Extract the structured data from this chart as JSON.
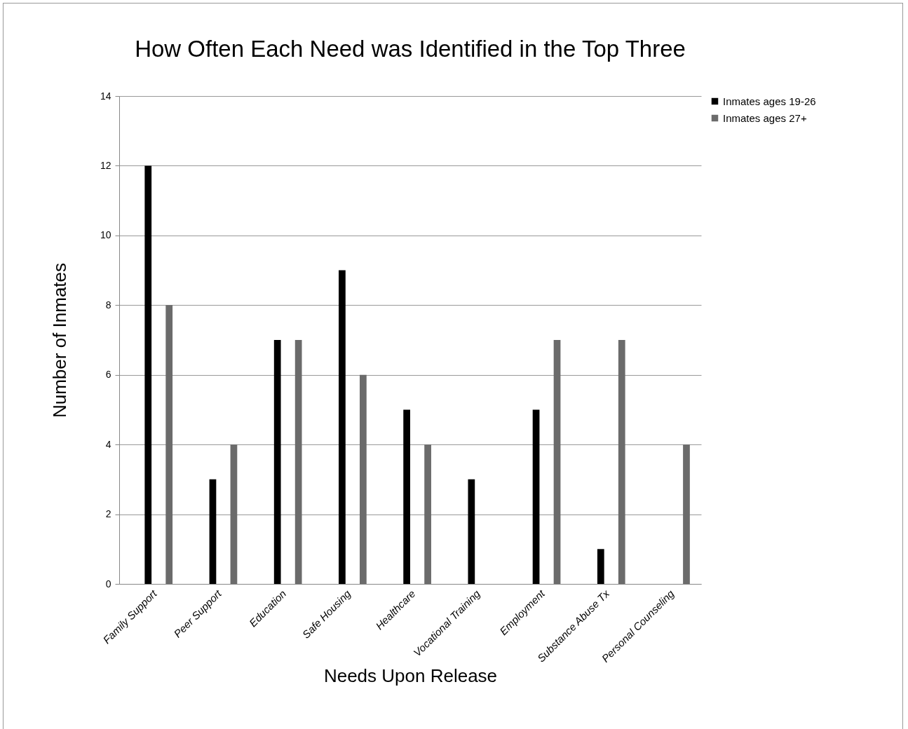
{
  "chart_data": {
    "type": "bar",
    "title": "How Often Each Need was Identified in the Top Three",
    "xlabel": "Needs Upon Release",
    "ylabel": "Number of Inmates",
    "categories": [
      "Family Support",
      "Peer Support",
      "Education",
      "Safe Housing",
      "Healthcare",
      "Vocational Training",
      "Employment",
      "Substance Abuse Tx",
      "Personal Counseling"
    ],
    "series": [
      {
        "name": "Inmates ages 19-26",
        "color": "#000000",
        "values": [
          12,
          3,
          7,
          9,
          5,
          3,
          5,
          1,
          0
        ]
      },
      {
        "name": "Inmates ages 27+",
        "color": "#6b6b6b",
        "values": [
          8,
          4,
          7,
          6,
          4,
          0,
          7,
          7,
          4
        ]
      }
    ],
    "ylim": [
      0,
      14
    ],
    "yticks": [
      0,
      2,
      4,
      6,
      8,
      10,
      12,
      14
    ],
    "grid": "y",
    "legend": "right"
  }
}
